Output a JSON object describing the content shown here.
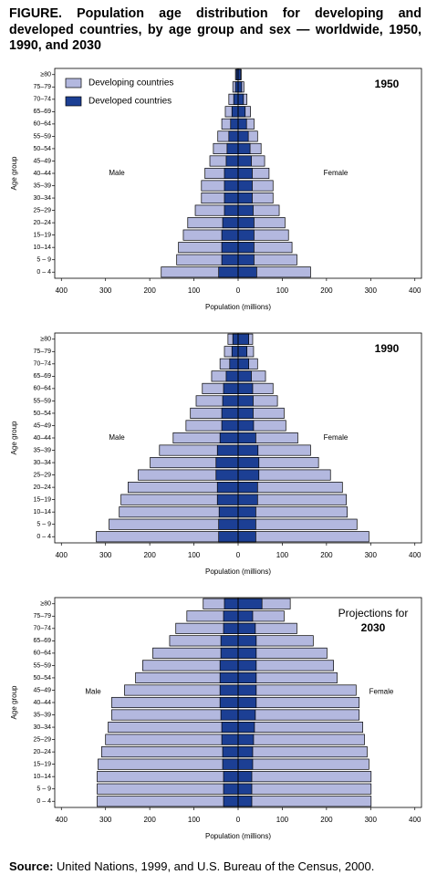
{
  "title": "FIGURE. Population age distribution for developing and developed countries, by age group and sex — worldwide, 1950, 1990, and 2030",
  "source": {
    "label": "Source:",
    "text": "United Nations, 1999, and U.S. Bureau of the Census, 2000."
  },
  "chart_data": [
    {
      "type": "pyramid",
      "panel_label": [
        "1950"
      ],
      "legend": "upper left",
      "xlabel": "Population (millions)",
      "ylabel": "Age group",
      "male_label": "Male",
      "female_label": "Female",
      "categories": [
        "0 – 4",
        "5 – 9",
        "10–14",
        "15–19",
        "20–24",
        "25–29",
        "30–34",
        "35–39",
        "40–44",
        "45–49",
        "50–54",
        "55–59",
        "60–64",
        "65–69",
        "70–74",
        "75–79",
        "≥80"
      ],
      "xlim": [
        -415,
        415
      ],
      "xticks": [
        {
          "value": -400,
          "label": "400"
        },
        {
          "value": -300,
          "label": "300"
        },
        {
          "value": -200,
          "label": "200"
        },
        {
          "value": -100,
          "label": "100"
        },
        0,
        100,
        200,
        300,
        400
      ],
      "series": [
        {
          "name": "Developing countries",
          "color": "#b3b8df",
          "male": [
            -174,
            -139,
            -135,
            -124,
            -114,
            -97,
            -83,
            -83,
            -75,
            -64,
            -56,
            -46,
            -37,
            -29,
            -21,
            -12,
            -6
          ],
          "female": [
            164,
            133,
            122,
            114,
            106,
            93,
            79,
            79,
            70,
            60,
            52,
            44,
            36,
            28,
            20,
            13,
            7
          ]
        },
        {
          "name": "Developed countries",
          "color": "#1c3f94",
          "male": [
            -44,
            -37,
            -37,
            -37,
            -35,
            -31,
            -31,
            -31,
            -31,
            -27,
            -25,
            -21,
            -17,
            -14,
            -10,
            -6,
            -4
          ],
          "female": [
            42,
            36,
            36,
            36,
            36,
            34,
            32,
            32,
            32,
            30,
            27,
            23,
            19,
            16,
            12,
            8,
            6
          ]
        }
      ]
    },
    {
      "type": "pyramid",
      "panel_label": [
        "1990"
      ],
      "legend": false,
      "xlabel": "Population (millions)",
      "ylabel": "Age group",
      "male_label": "Male",
      "female_label": "Female",
      "categories": [
        "0 – 4",
        "5 – 9",
        "10–14",
        "15–19",
        "20–24",
        "25–29",
        "30–34",
        "35–39",
        "40–44",
        "45–49",
        "50–54",
        "55–59",
        "60–64",
        "65–69",
        "70–74",
        "75–79",
        "≥80"
      ],
      "xlim": [
        -415,
        415
      ],
      "xticks": [
        {
          "value": -400,
          "label": "400"
        },
        {
          "value": -300,
          "label": "300"
        },
        {
          "value": -200,
          "label": "200"
        },
        {
          "value": -100,
          "label": "100"
        },
        0,
        100,
        200,
        300,
        400
      ],
      "series": [
        {
          "name": "Developing countries",
          "color": "#b3b8df",
          "male": [
            -321,
            -292,
            -269,
            -265,
            -249,
            -226,
            -199,
            -178,
            -147,
            -118,
            -108,
            -95,
            -81,
            -60,
            -41,
            -31,
            -23
          ],
          "female": [
            296,
            269,
            247,
            245,
            236,
            209,
            182,
            164,
            135,
            108,
            104,
            89,
            79,
            62,
            44,
            35,
            33
          ]
        },
        {
          "name": "Developed countries",
          "color": "#1c3f94",
          "male": [
            -44,
            -44,
            -43,
            -47,
            -47,
            -50,
            -50,
            -47,
            -41,
            -37,
            -37,
            -35,
            -33,
            -27,
            -19,
            -14,
            -12
          ],
          "female": [
            40,
            40,
            40,
            44,
            44,
            47,
            47,
            45,
            40,
            35,
            34,
            34,
            33,
            30,
            24,
            20,
            24
          ]
        }
      ]
    },
    {
      "type": "pyramid",
      "panel_label": [
        "Projections for",
        "2030"
      ],
      "legend": false,
      "xlabel": "Population (millions)",
      "ylabel": "Age group",
      "male_label": "Male",
      "female_label": "Female",
      "categories": [
        "0 – 4",
        "5 – 9",
        "10–14",
        "15–19",
        "20–24",
        "25–29",
        "30–34",
        "35–39",
        "40–44",
        "45–49",
        "50–54",
        "55–59",
        "60–64",
        "65–69",
        "70–74",
        "75–79",
        "≥80"
      ],
      "xlim": [
        -415,
        415
      ],
      "xticks": [
        {
          "value": -400,
          "label": "400"
        },
        {
          "value": -300,
          "label": "300"
        },
        {
          "value": -200,
          "label": "200"
        },
        {
          "value": -100,
          "label": "100"
        },
        0,
        100,
        200,
        300,
        400
      ],
      "series": [
        {
          "name": "Developing countries",
          "color": "#b3b8df",
          "male": [
            -319,
            -319,
            -319,
            -317,
            -309,
            -300,
            -294,
            -286,
            -286,
            -257,
            -232,
            -216,
            -193,
            -155,
            -141,
            -116,
            -79
          ],
          "female": [
            301,
            301,
            301,
            296,
            292,
            286,
            282,
            274,
            274,
            267,
            224,
            216,
            201,
            170,
            133,
            104,
            118
          ]
        },
        {
          "name": "Developed countries",
          "color": "#1c3f94",
          "male": [
            -33,
            -33,
            -33,
            -35,
            -35,
            -37,
            -37,
            -39,
            -41,
            -41,
            -41,
            -41,
            -39,
            -39,
            -33,
            -33,
            -31
          ],
          "female": [
            31,
            31,
            31,
            33,
            33,
            35,
            37,
            39,
            41,
            41,
            41,
            41,
            41,
            41,
            39,
            33,
            54
          ]
        }
      ]
    }
  ]
}
